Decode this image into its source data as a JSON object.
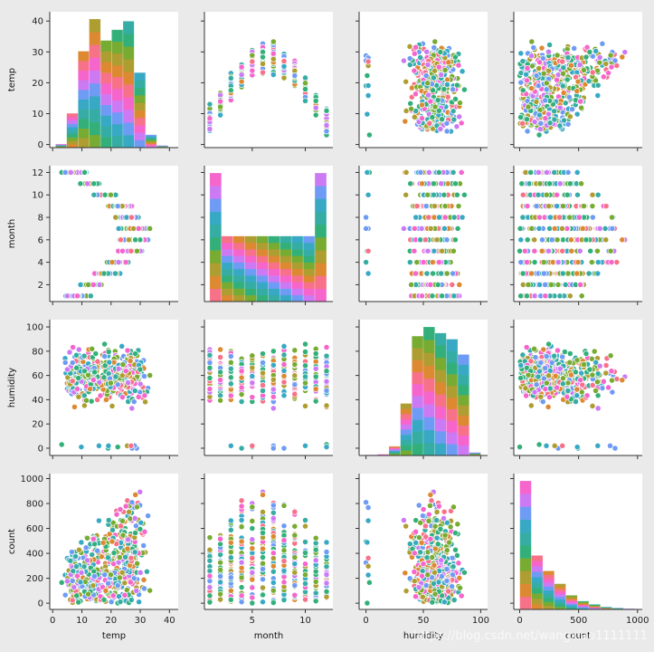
{
  "chart_data": {
    "type": "pairplot",
    "variables": [
      "temp",
      "month",
      "humidity",
      "count"
    ],
    "hue_colors": [
      "#f77189",
      "#dc8932",
      "#ae9d31",
      "#77ab31",
      "#33b07a",
      "#36ada4",
      "#38a9c5",
      "#6e9bf4",
      "#cc7af4",
      "#f565cc"
    ],
    "axes": {
      "temp": {
        "label": "temp",
        "range": [
          -1,
          43
        ],
        "ticks": [
          0,
          10,
          20,
          30,
          40
        ],
        "tick_labels": [
          "0",
          "10",
          "20",
          "30",
          "40"
        ]
      },
      "month": {
        "label": "month",
        "range": [
          0.5,
          12.6
        ],
        "ticks": [
          2,
          4,
          6,
          8,
          10,
          12
        ],
        "tick_labels": [
          "2",
          "4",
          "6",
          "8",
          "10",
          "12"
        ],
        "x_ticks": [
          5,
          10
        ],
        "x_tick_labels": [
          "5",
          "10"
        ]
      },
      "humidity": {
        "label": "humidity",
        "range": [
          -6,
          106
        ],
        "ticks": [
          0,
          20,
          40,
          60,
          80,
          100
        ],
        "tick_labels": [
          "0",
          "20",
          "40",
          "60",
          "80",
          "100"
        ],
        "x_ticks": [
          0,
          50,
          100
        ],
        "x_tick_labels": [
          "0",
          "50",
          "100"
        ]
      },
      "count": {
        "label": "count",
        "range": [
          -50,
          1040
        ],
        "ticks": [
          0,
          200,
          400,
          600,
          800,
          1000
        ],
        "tick_labels": [
          "0",
          "200",
          "400",
          "600",
          "800",
          "1000"
        ],
        "x_ticks": [
          0,
          500,
          1000
        ],
        "x_tick_labels": [
          "0",
          "500",
          "1000"
        ]
      }
    },
    "histograms": {
      "temp": {
        "edges": [
          1,
          4.8,
          8.7,
          12.5,
          16.4,
          20.2,
          24.1,
          27.9,
          31.8,
          35.6,
          39.5
        ],
        "heights": [
          0.5,
          4.8,
          13.5,
          18,
          15,
          16.5,
          17.7,
          10.5,
          1.8,
          0.3
        ]
      },
      "month": {
        "edges": [
          1,
          2.1,
          3.2,
          4.3,
          5.4,
          6.5,
          7.6,
          8.7,
          9.8,
          10.9,
          12
        ],
        "heights": [
          5.5,
          2.8,
          2.8,
          2.8,
          2.8,
          2.8,
          2.8,
          2.8,
          2.8,
          5.5
        ]
      },
      "humidity": {
        "edges": [
          0,
          10,
          20,
          30,
          40,
          50,
          60,
          70,
          80,
          90,
          100
        ],
        "heights": [
          0.1,
          0.2,
          1.5,
          8.5,
          19.5,
          21,
          20,
          19,
          16.5,
          0.5
        ]
      },
      "count": {
        "edges": [
          1,
          98.6,
          196.2,
          293.8,
          391.4,
          489,
          586.6,
          684.2,
          781.8,
          879.4,
          977
        ],
        "heights": [
          100,
          42,
          30,
          20,
          11,
          6.5,
          4,
          2,
          1.2,
          0.6
        ]
      }
    },
    "watermark": "https://blog.csdn.net/wangxiao1111111"
  }
}
